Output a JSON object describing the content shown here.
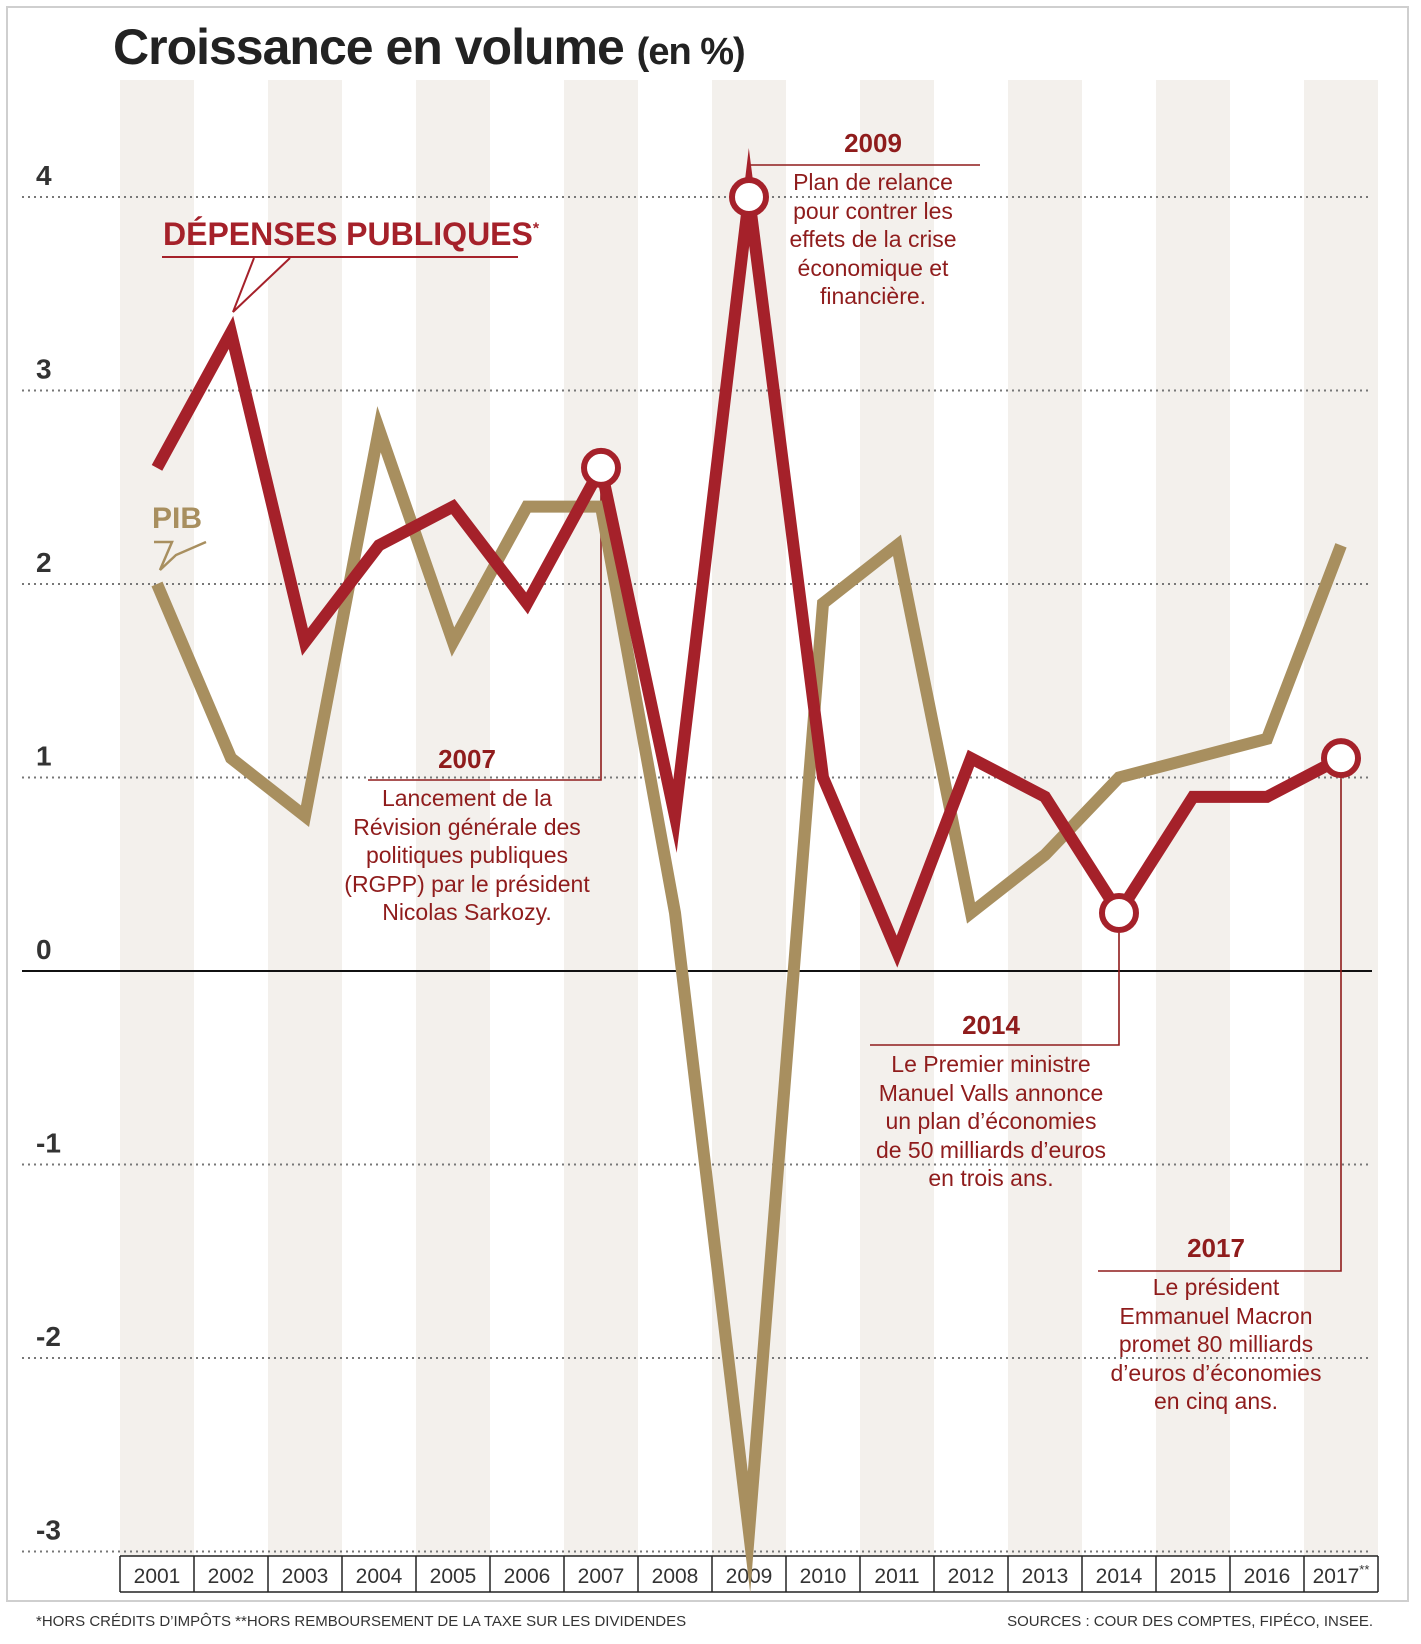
{
  "title": "Croissance en volume",
  "title_unit": "(en %)",
  "series_labels": {
    "depenses": "DÉPENSES PUBLIQUES",
    "depenses_mark": "*",
    "pib": "PIB"
  },
  "annotations": [
    {
      "year": "2009",
      "text": "Plan de relance\npour contrer les\neffets de la crise\néconomique et\nfinancière."
    },
    {
      "year": "2007",
      "text": "Lancement de la\nRévision générale des\npolitiques publiques\n(RGPP) par le président\nNicolas Sarkozy."
    },
    {
      "year": "2014",
      "text": "Le Premier ministre\nManuel Valls annonce\nun plan d’économies\nde 50 milliards d’euros\nen trois ans."
    },
    {
      "year": "2017",
      "text": "Le président\nEmmanuel Macron\npromet 80 milliards\nd’euros d’économies\nen cinq ans."
    }
  ],
  "footnote": "*HORS CRÉDITS D’IMPÔTS  **HORS REMBOURSEMENT DE LA TAXE SUR LES DIVIDENDES",
  "sources": "SOURCES : COUR DES COMPTES, FIPÉCO, INSEE.",
  "colors": {
    "depenses": "#a5212a",
    "pib": "#a88f5f",
    "stripe": "#f3f0ec",
    "annotation": "#8f1c1c"
  },
  "chart_data": {
    "type": "line",
    "x": [
      "2001",
      "2002",
      "2003",
      "2004",
      "2005",
      "2006",
      "2007",
      "2008",
      "2009",
      "2010",
      "2011",
      "2012",
      "2013",
      "2014",
      "2015",
      "2016",
      "2017"
    ],
    "x_last_mark": "**",
    "series": [
      {
        "name": "DÉPENSES PUBLIQUES",
        "values": [
          2.6,
          3.3,
          1.7,
          2.2,
          2.4,
          1.9,
          2.6,
          0.8,
          4.0,
          1.0,
          0.1,
          1.1,
          0.9,
          0.3,
          0.9,
          0.9,
          1.1
        ]
      },
      {
        "name": "PIB",
        "values": [
          2.0,
          1.1,
          0.8,
          2.8,
          1.7,
          2.4,
          2.4,
          0.3,
          -2.9,
          1.9,
          2.2,
          0.3,
          0.6,
          1.0,
          1.1,
          1.2,
          2.2
        ]
      }
    ],
    "highlighted_points": {
      "DÉPENSES PUBLIQUES": [
        "2007",
        "2009",
        "2014",
        "2017"
      ]
    },
    "yticks": [
      4,
      3,
      2,
      1,
      0,
      -1,
      -2,
      -3
    ],
    "ylim": [
      -3,
      4
    ],
    "grid": "dotted horizontal",
    "xlabel": "",
    "ylabel": ""
  }
}
